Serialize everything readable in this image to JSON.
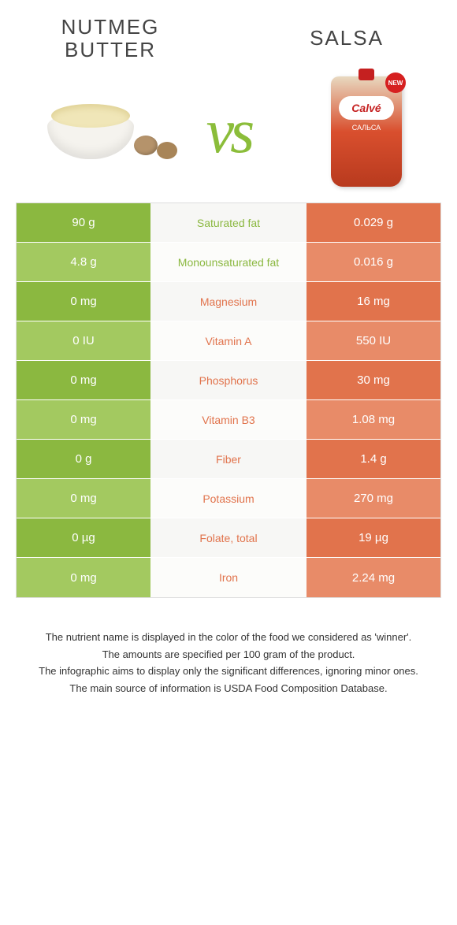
{
  "colors": {
    "green": "#8bb840",
    "green_light": "#a3c960",
    "orange": "#e1734c",
    "orange_light": "#e88b68",
    "mid_bg_a": "#f7f7f5",
    "mid_bg_b": "#fcfcfa",
    "text_green": "#8bb840",
    "text_orange": "#e1734c"
  },
  "header": {
    "left_title": "Nutmeg butter",
    "right_title": "Salsa",
    "vs": "vs",
    "brand": "Calvé",
    "pack_text": "САЛЬСА",
    "new": "NEW"
  },
  "rows": [
    {
      "left": "90 g",
      "label": "Saturated fat",
      "right": "0.029 g",
      "winner": "left"
    },
    {
      "left": "4.8 g",
      "label": "Monounsaturated fat",
      "right": "0.016 g",
      "winner": "left"
    },
    {
      "left": "0 mg",
      "label": "Magnesium",
      "right": "16 mg",
      "winner": "right"
    },
    {
      "left": "0 IU",
      "label": "Vitamin A",
      "right": "550 IU",
      "winner": "right"
    },
    {
      "left": "0 mg",
      "label": "Phosphorus",
      "right": "30 mg",
      "winner": "right"
    },
    {
      "left": "0 mg",
      "label": "Vitamin B3",
      "right": "1.08 mg",
      "winner": "right"
    },
    {
      "left": "0 g",
      "label": "Fiber",
      "right": "1.4 g",
      "winner": "right"
    },
    {
      "left": "0 mg",
      "label": "Potassium",
      "right": "270 mg",
      "winner": "right"
    },
    {
      "left": "0 µg",
      "label": "Folate, total",
      "right": "19 µg",
      "winner": "right"
    },
    {
      "left": "0 mg",
      "label": "Iron",
      "right": "2.24 mg",
      "winner": "right"
    }
  ],
  "footer": {
    "l1": "The nutrient name is displayed in the color of the food we considered as 'winner'.",
    "l2": "The amounts are specified per 100 gram of the product.",
    "l3": "The infographic aims to display only the significant differences, ignoring minor ones.",
    "l4": "The main source of information is USDA Food Composition Database."
  }
}
